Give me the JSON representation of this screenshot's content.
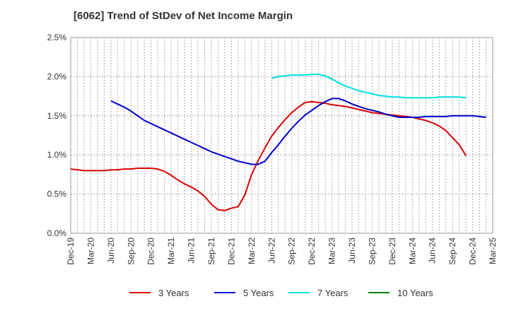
{
  "chart_data": {
    "type": "line",
    "title": "[6062]  Trend of StDev of Net Income Margin",
    "xlabel": "",
    "ylabel": "",
    "y_ticks": [
      "0.0%",
      "0.5%",
      "1.0%",
      "1.5%",
      "2.0%",
      "2.5%"
    ],
    "ylim": [
      0,
      2.5
    ],
    "x_ticks": [
      "Dec-19",
      "Mar-20",
      "Jun-20",
      "Sep-20",
      "Dec-20",
      "Mar-21",
      "Jun-21",
      "Sep-21",
      "Dec-21",
      "Mar-22",
      "Jun-22",
      "Sep-22",
      "Dec-22",
      "Mar-23",
      "Jun-23",
      "Sep-23",
      "Dec-23",
      "Mar-24",
      "Jun-24",
      "Sep-24",
      "Dec-24",
      "Mar-25"
    ],
    "grid": true,
    "legend_position": "bottom",
    "series": [
      {
        "name": "3 Years",
        "color": "#dd0000",
        "start_month": 0,
        "values": [
          0.82,
          0.81,
          0.8,
          0.8,
          0.8,
          0.8,
          0.81,
          0.81,
          0.82,
          0.82,
          0.83,
          0.83,
          0.83,
          0.82,
          0.79,
          0.74,
          0.68,
          0.63,
          0.59,
          0.54,
          0.47,
          0.37,
          0.3,
          0.29,
          0.32,
          0.34,
          0.49,
          0.75,
          0.93,
          1.09,
          1.24,
          1.35,
          1.45,
          1.54,
          1.61,
          1.67,
          1.68,
          1.67,
          1.66,
          1.64,
          1.63,
          1.62,
          1.6,
          1.58,
          1.56,
          1.54,
          1.53,
          1.52,
          1.51,
          1.5,
          1.49,
          1.48,
          1.46,
          1.44,
          1.41,
          1.37,
          1.31,
          1.22,
          1.13,
          0.99
        ]
      },
      {
        "name": "5 Years",
        "color": "#0000cc",
        "start_month": 6,
        "values": [
          1.69,
          1.65,
          1.61,
          1.56,
          1.5,
          1.44,
          1.4,
          1.36,
          1.32,
          1.28,
          1.24,
          1.2,
          1.16,
          1.12,
          1.08,
          1.04,
          1.01,
          0.98,
          0.95,
          0.92,
          0.9,
          0.88,
          0.88,
          0.92,
          1.03,
          1.13,
          1.24,
          1.34,
          1.43,
          1.51,
          1.57,
          1.63,
          1.68,
          1.72,
          1.72,
          1.69,
          1.65,
          1.62,
          1.59,
          1.57,
          1.55,
          1.52,
          1.5,
          1.48,
          1.48,
          1.48,
          1.48,
          1.49,
          1.49,
          1.49,
          1.49,
          1.5,
          1.5,
          1.5,
          1.5,
          1.49,
          1.48
        ]
      },
      {
        "name": "7 Years",
        "color": "#00e0e0",
        "start_month": 30,
        "values": [
          1.98,
          2.0,
          2.01,
          2.02,
          2.02,
          2.02,
          2.03,
          2.03,
          2.01,
          1.97,
          1.92,
          1.88,
          1.85,
          1.82,
          1.8,
          1.78,
          1.76,
          1.75,
          1.74,
          1.74,
          1.73,
          1.73,
          1.73,
          1.73,
          1.73,
          1.74,
          1.74,
          1.74,
          1.74,
          1.73
        ]
      },
      {
        "name": "10 Years",
        "color": "#008000",
        "start_month": 0,
        "values": []
      }
    ]
  }
}
